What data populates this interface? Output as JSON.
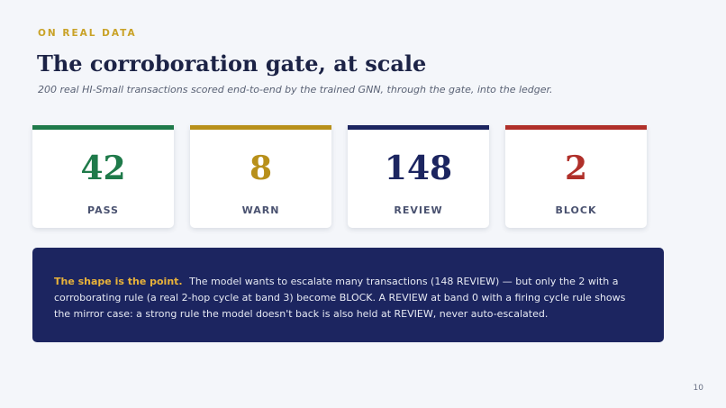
{
  "eyebrow": "ON REAL DATA",
  "title": "The corroboration gate, at scale",
  "subtitle": "200 real HI-Small transactions scored end-to-end by the trained GNN, through the gate, into the ledger.",
  "cards": [
    {
      "value": 42,
      "label": "PASS"
    },
    {
      "value": 8,
      "label": "WARN"
    },
    {
      "value": 148,
      "label": "REVIEW"
    },
    {
      "value": 2,
      "label": "BLOCK"
    }
  ],
  "callout": {
    "lead": "The shape is the point.",
    "body": "The model wants to escalate many transactions (148 REVIEW) — but only the 2 with a corroborating rule (a real 2-hop cycle at band 3) become BLOCK. A REVIEW at band 0 with a firing cycle rule shows the mirror case: a strong rule the model doesn't back is also held at REVIEW, never auto-escalated."
  },
  "page_number": 10
}
